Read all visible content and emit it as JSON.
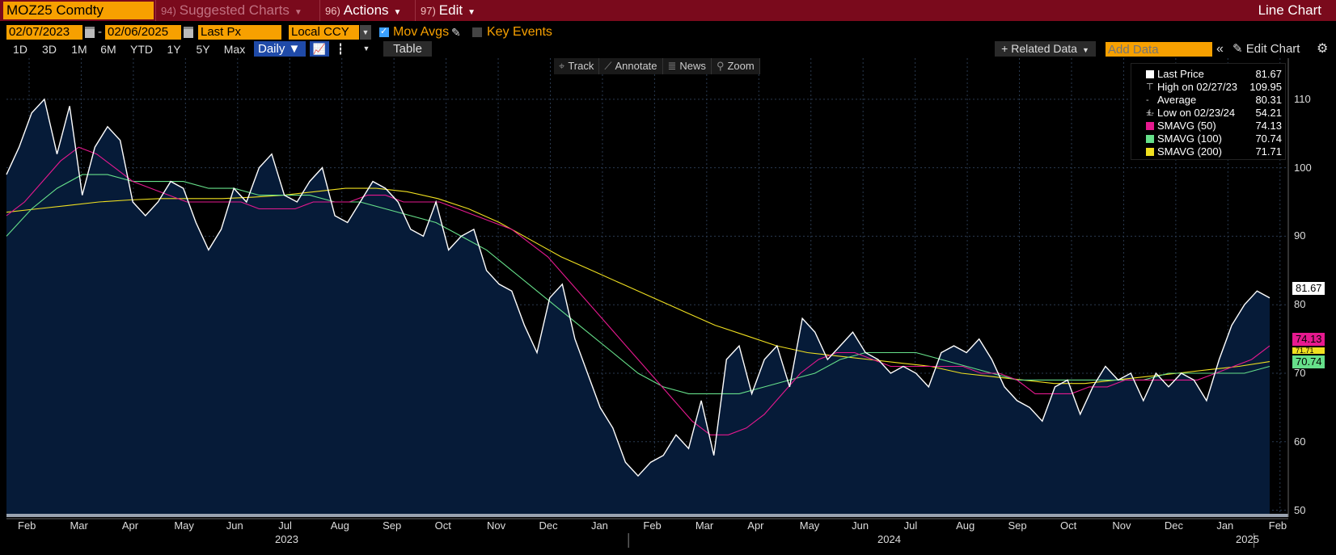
{
  "topbar": {
    "ticker": "MOZ25 Comdty",
    "suggested": {
      "num": "94)",
      "label": "Suggested Charts"
    },
    "actions": {
      "num": "96)",
      "label": "Actions"
    },
    "edit": {
      "num": "97)",
      "label": "Edit"
    },
    "chart_type": "Line Chart"
  },
  "controls": {
    "start_date": "02/07/2023",
    "end_date": "02/06/2025",
    "dash": "-",
    "field": "Last Px",
    "currency": "Local CCY",
    "mov_avgs": "Mov Avgs",
    "key_events": "Key Events",
    "ranges": [
      "1D",
      "3D",
      "1M",
      "6M",
      "YTD",
      "1Y",
      "5Y",
      "Max"
    ],
    "period": "Daily",
    "table": "Table",
    "related_data": "Related Data",
    "add_data_placeholder": "Add Data",
    "edit_chart": "Edit Chart"
  },
  "chart_toolbar": [
    "Track",
    "Annotate",
    "News",
    "Zoom"
  ],
  "legend": [
    {
      "label": "Last Price",
      "value": "81.67",
      "color": "#ffffff"
    },
    {
      "label": "High on 02/27/23",
      "value": "109.95",
      "color": "#cccccc"
    },
    {
      "label": "Average",
      "value": "80.31",
      "color": "#cccccc"
    },
    {
      "label": "Low on 02/23/24",
      "value": "54.21",
      "color": "#cccccc"
    },
    {
      "label": "SMAVG (50)",
      "value": "74.13",
      "color": "#e6198f"
    },
    {
      "label": "SMAVG (100)",
      "value": "70.74",
      "color": "#66e08a"
    },
    {
      "label": "SMAVG (200)",
      "value": "71.71",
      "color": "#f0e020"
    }
  ],
  "tags": {
    "last": "81.67",
    "sma50": "74.13",
    "sma200": "71.71",
    "sma100": "70.74"
  },
  "chart_data": {
    "type": "line",
    "ylim": [
      49,
      116
    ],
    "yticks": [
      50,
      60,
      70,
      80,
      90,
      100,
      110
    ],
    "month_labels": [
      "Feb",
      "Mar",
      "Apr",
      "May",
      "Jun",
      "Jul",
      "Aug",
      "Sep",
      "Oct",
      "Nov",
      "Dec",
      "Jan",
      "Feb",
      "Mar",
      "Apr",
      "May",
      "Jun",
      "Jul",
      "Aug",
      "Sep",
      "Oct",
      "Nov",
      "Dec",
      "Jan",
      "Feb"
    ],
    "year_labels": [
      "2023",
      "2024",
      "2025"
    ],
    "series": [
      {
        "name": "Last Price",
        "color": "#ffffff",
        "values": [
          99,
          103,
          108,
          110,
          102,
          109,
          96,
          103,
          106,
          104,
          95,
          93,
          95,
          98,
          97,
          92,
          88,
          91,
          97,
          95,
          100,
          102,
          96,
          95,
          98,
          100,
          93,
          92,
          95,
          98,
          97,
          95,
          91,
          90,
          95,
          88,
          90,
          91,
          85,
          83,
          82,
          77,
          73,
          81,
          83,
          75,
          70,
          65,
          62,
          57,
          55,
          57,
          58,
          61,
          59,
          66,
          58,
          72,
          74,
          67,
          72,
          74,
          68,
          78,
          76,
          72,
          74,
          76,
          73,
          72,
          70,
          71,
          70,
          68,
          73,
          74,
          73,
          75,
          72,
          68,
          66,
          65,
          63,
          68,
          69,
          64,
          68,
          71,
          69,
          70,
          66,
          70,
          68,
          70,
          69,
          66,
          72,
          77,
          80,
          82,
          81
        ]
      },
      {
        "name": "SMAVG (50)",
        "color": "#e6198f",
        "values": [
          93,
          95,
          98,
          101,
          103,
          102,
          100,
          98,
          97,
          96,
          95,
          95,
          95,
          95,
          94,
          94,
          94,
          95,
          95,
          95,
          96,
          96,
          95,
          95,
          95,
          94,
          93,
          92,
          91,
          89,
          87,
          84,
          81,
          78,
          75,
          72,
          69,
          66,
          63,
          61,
          61,
          62,
          64,
          67,
          70,
          72,
          73,
          73,
          72,
          71,
          71,
          71,
          71,
          71,
          70,
          70,
          69,
          67,
          67,
          67,
          68,
          68,
          69,
          69,
          69,
          69,
          69,
          70,
          71,
          72,
          74
        ]
      },
      {
        "name": "SMAVG (100)",
        "color": "#66e08a",
        "values": [
          90,
          94,
          97,
          99,
          99,
          98,
          98,
          98,
          97,
          97,
          96,
          96,
          96,
          95,
          95,
          94,
          93,
          92,
          90,
          88,
          85,
          82,
          79,
          76,
          73,
          70,
          68,
          67,
          67,
          67,
          68,
          69,
          70,
          72,
          73,
          73,
          73,
          72,
          71,
          70,
          69,
          69,
          69,
          69,
          69,
          69,
          70,
          70,
          70,
          70,
          71
        ]
      },
      {
        "name": "SMAVG (200)",
        "color": "#f0e020",
        "values": [
          93.5,
          94,
          94.5,
          95,
          95.3,
          95.5,
          95.5,
          95.5,
          95.7,
          96,
          96.5,
          97,
          97,
          96.5,
          95.5,
          94,
          92,
          89.5,
          87,
          85,
          83,
          81,
          79,
          77,
          75.5,
          74,
          73,
          72.5,
          72,
          71.5,
          71,
          70,
          69.5,
          69,
          68.5,
          68.5,
          69,
          69.5,
          70,
          70.5,
          71,
          71.7
        ]
      }
    ]
  }
}
